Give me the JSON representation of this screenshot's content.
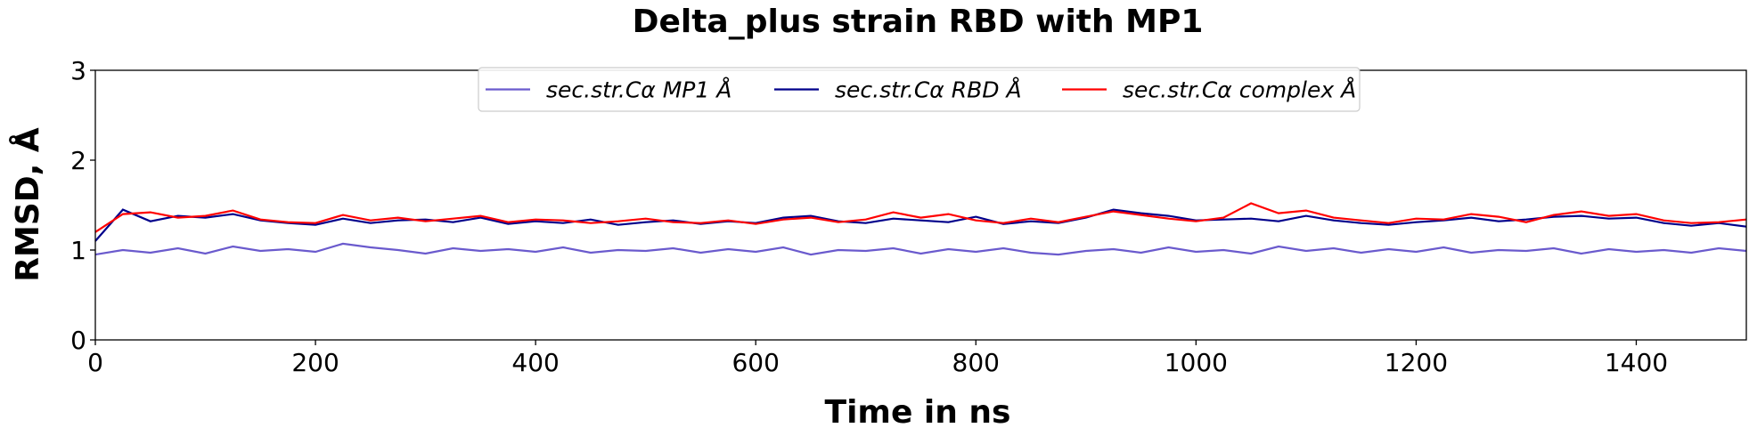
{
  "chart_data": {
    "type": "line",
    "title": "Delta_plus strain RBD with MP1",
    "xlabel": "Time in ns",
    "ylabel": "RMSD, Å",
    "xlim": [
      0,
      1500
    ],
    "ylim": [
      0,
      3
    ],
    "xticks": [
      0,
      200,
      400,
      600,
      800,
      1000,
      1200,
      1400
    ],
    "yticks": [
      0,
      1,
      2,
      3
    ],
    "grid": false,
    "legend": {
      "placement": "top-center",
      "ncol": 3
    },
    "x": [
      0,
      25,
      50,
      75,
      100,
      125,
      150,
      175,
      200,
      225,
      250,
      275,
      300,
      325,
      350,
      375,
      400,
      425,
      450,
      475,
      500,
      525,
      550,
      575,
      600,
      625,
      650,
      675,
      700,
      725,
      750,
      775,
      800,
      825,
      850,
      875,
      900,
      925,
      950,
      975,
      1000,
      1025,
      1050,
      1075,
      1100,
      1125,
      1150,
      1175,
      1200,
      1225,
      1250,
      1275,
      1300,
      1325,
      1350,
      1375,
      1400,
      1425,
      1450,
      1475,
      1500
    ],
    "series": [
      {
        "name": "sec.str.Cα MP1 Å",
        "color": "#6a5acd",
        "values": [
          0.95,
          1.0,
          0.97,
          1.02,
          0.96,
          1.04,
          0.99,
          1.01,
          0.98,
          1.07,
          1.03,
          1.0,
          0.96,
          1.02,
          0.99,
          1.01,
          0.98,
          1.03,
          0.97,
          1.0,
          0.99,
          1.02,
          0.97,
          1.01,
          0.98,
          1.03,
          0.95,
          1.0,
          0.99,
          1.02,
          0.96,
          1.01,
          0.98,
          1.02,
          0.97,
          0.95,
          0.99,
          1.01,
          0.97,
          1.03,
          0.98,
          1.0,
          0.96,
          1.04,
          0.99,
          1.02,
          0.97,
          1.01,
          0.98,
          1.03,
          0.97,
          1.0,
          0.99,
          1.02,
          0.96,
          1.01,
          0.98,
          1.0,
          0.97,
          1.02,
          0.99
        ]
      },
      {
        "name": "sec.str.Cα RBD Å",
        "color": "#00008b",
        "values": [
          1.1,
          1.45,
          1.32,
          1.38,
          1.36,
          1.4,
          1.33,
          1.3,
          1.28,
          1.35,
          1.3,
          1.33,
          1.34,
          1.31,
          1.36,
          1.29,
          1.32,
          1.3,
          1.34,
          1.28,
          1.31,
          1.33,
          1.29,
          1.32,
          1.3,
          1.36,
          1.38,
          1.32,
          1.3,
          1.35,
          1.33,
          1.31,
          1.37,
          1.29,
          1.32,
          1.3,
          1.36,
          1.45,
          1.41,
          1.38,
          1.33,
          1.34,
          1.35,
          1.32,
          1.38,
          1.33,
          1.3,
          1.28,
          1.31,
          1.33,
          1.36,
          1.32,
          1.34,
          1.37,
          1.38,
          1.35,
          1.36,
          1.3,
          1.27,
          1.3,
          1.26
        ]
      },
      {
        "name": "sec.str.Cα complex Å",
        "color": "#ff0000",
        "values": [
          1.2,
          1.4,
          1.42,
          1.36,
          1.38,
          1.44,
          1.34,
          1.31,
          1.3,
          1.39,
          1.33,
          1.36,
          1.32,
          1.35,
          1.38,
          1.31,
          1.34,
          1.33,
          1.3,
          1.32,
          1.35,
          1.31,
          1.3,
          1.33,
          1.29,
          1.34,
          1.36,
          1.31,
          1.34,
          1.42,
          1.36,
          1.4,
          1.33,
          1.3,
          1.35,
          1.31,
          1.37,
          1.43,
          1.39,
          1.35,
          1.32,
          1.36,
          1.52,
          1.41,
          1.44,
          1.36,
          1.33,
          1.3,
          1.35,
          1.34,
          1.4,
          1.37,
          1.31,
          1.39,
          1.43,
          1.38,
          1.4,
          1.33,
          1.3,
          1.31,
          1.34
        ]
      }
    ]
  }
}
